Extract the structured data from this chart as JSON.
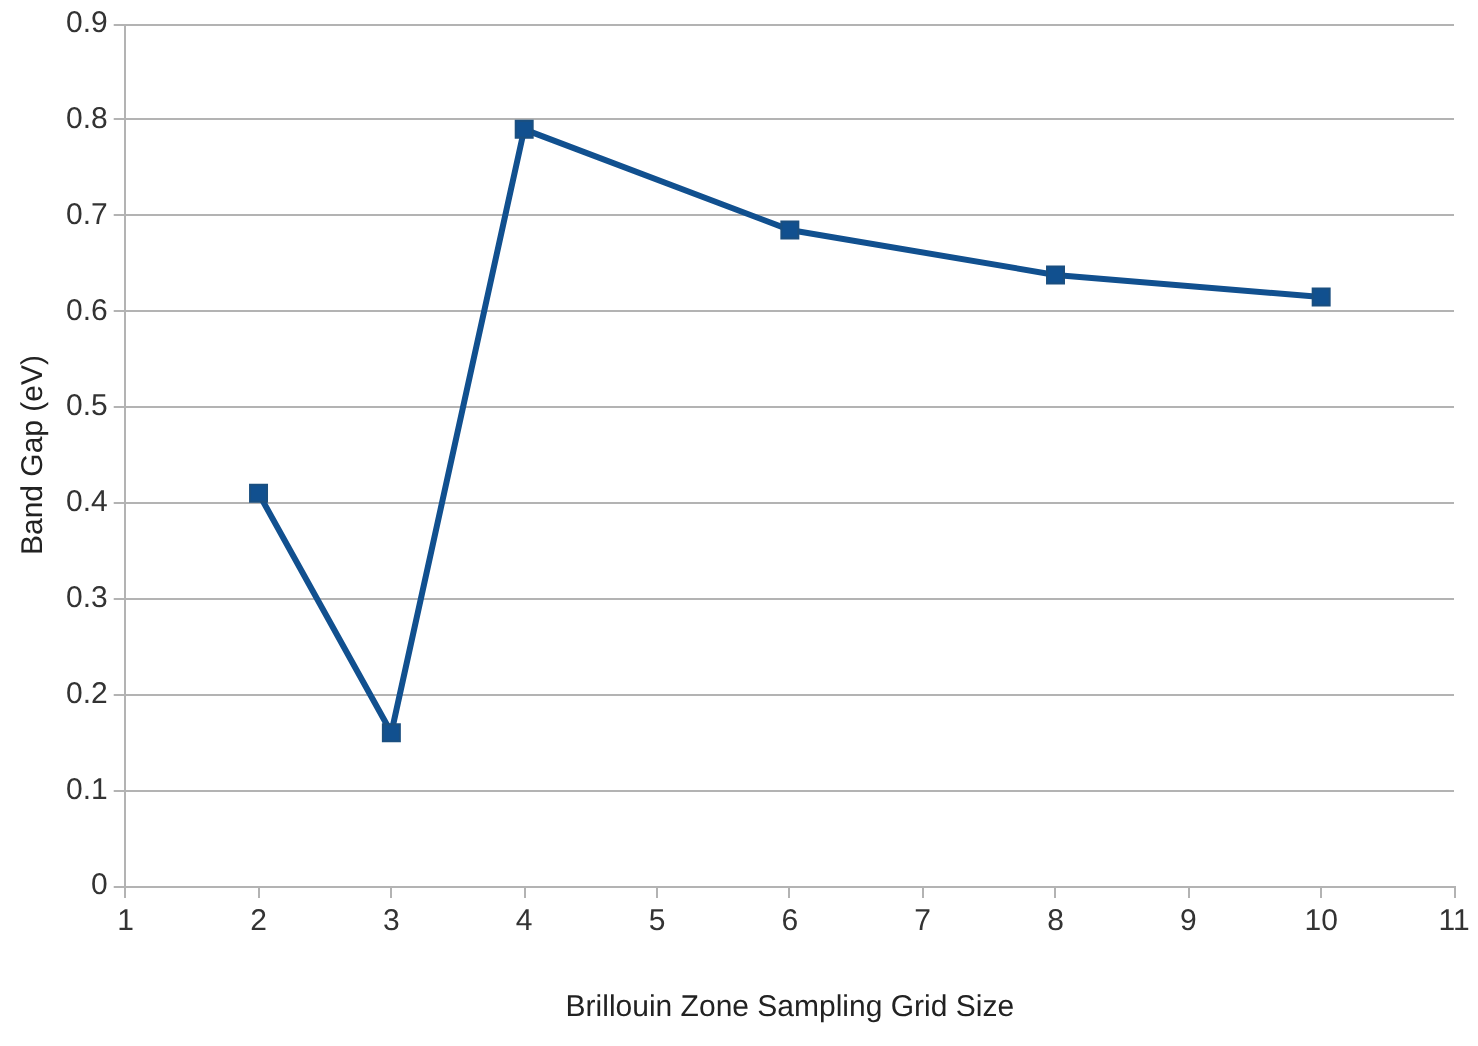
{
  "chart_data": {
    "type": "line",
    "xlabel": "Brillouin Zone Sampling Grid Size",
    "ylabel": "Band Gap (eV)",
    "x": [
      2,
      3,
      4,
      6,
      8,
      10
    ],
    "series": [
      {
        "color": "#11508f",
        "values": [
          0.41,
          0.16,
          0.79,
          0.685,
          0.638,
          0.615
        ]
      }
    ],
    "xlim": [
      1,
      11
    ],
    "xticks": [
      1,
      2,
      3,
      4,
      5,
      6,
      7,
      8,
      9,
      10,
      11
    ],
    "ylim": [
      0,
      0.9
    ],
    "yticks": [
      0,
      0.1,
      0.2,
      0.3,
      0.4,
      0.5,
      0.6,
      0.7,
      0.8,
      0.9
    ],
    "grid": "y",
    "legend": false,
    "marker": "square",
    "line_style": "solid"
  }
}
